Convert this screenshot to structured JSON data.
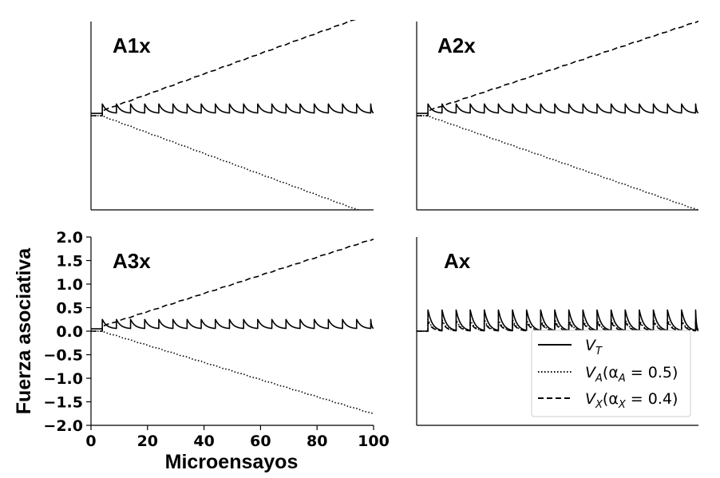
{
  "chart_data": {
    "type": "line",
    "xlabel": "Microensayos",
    "ylabel": "Fuerza asociativa",
    "xlim": [
      0,
      100
    ],
    "ylim": [
      -2.0,
      2.0
    ],
    "xticks": [
      "0",
      "20",
      "40",
      "60",
      "80",
      "100"
    ],
    "yticks": [
      "2.0",
      "1.5",
      "1.0",
      "0.5",
      "0.0",
      "−0.5",
      "−1.0",
      "−1.5",
      "−2.0"
    ],
    "legend": {
      "placement": "lower-right of panel Ax",
      "entries": [
        {
          "series": "VT",
          "main": "V",
          "sub": "T",
          "rest": ""
        },
        {
          "series": "VA",
          "main": "V",
          "sub": "A",
          "rest": "(α",
          "sub2": "A",
          "rest2": " = 0.5)"
        },
        {
          "series": "VX",
          "main": "V",
          "sub": "X",
          "rest": "(α",
          "sub2": "X",
          "rest2": " = 0.4)"
        }
      ]
    },
    "panels": [
      {
        "label": "A1x",
        "series": {
          "VT": {
            "style": "solid",
            "onset": 4,
            "period": 5,
            "base": 0.05,
            "peak": 0.25
          },
          "VA": {
            "style": "dotted",
            "onset": 4,
            "start": 0.0,
            "end": -2.05,
            "end_x": 97
          },
          "VX": {
            "style": "dashed",
            "onset": 4,
            "start": 0.1,
            "end": 2.05,
            "end_x": 94
          }
        }
      },
      {
        "label": "A2x",
        "series": {
          "VT": {
            "style": "solid",
            "onset": 4,
            "period": 5,
            "base": 0.05,
            "peak": 0.25
          },
          "VA": {
            "style": "dotted",
            "onset": 4,
            "start": 0.0,
            "end": -2.0,
            "end_x": 100
          },
          "VX": {
            "style": "dashed",
            "onset": 4,
            "start": 0.1,
            "end": 2.0,
            "end_x": 100
          }
        }
      },
      {
        "label": "A3x",
        "series": {
          "VT": {
            "style": "solid",
            "onset": 4,
            "period": 5,
            "base": 0.05,
            "peak": 0.25
          },
          "VA": {
            "style": "dotted",
            "onset": 4,
            "start": 0.0,
            "end": -1.75,
            "end_x": 100
          },
          "VX": {
            "style": "dashed",
            "onset": 4,
            "start": 0.1,
            "end": 1.95,
            "end_x": 100
          }
        }
      },
      {
        "label": "Ax",
        "series": {
          "VT": {
            "style": "solid",
            "onset": 4,
            "period": 5,
            "base": 0.0,
            "peak": 0.45
          },
          "VA": {
            "style": "dotted",
            "onset": 4,
            "period": 5,
            "base": 0.0,
            "peak": 0.25
          },
          "VX": {
            "style": "dashed",
            "onset": 4,
            "period": 5,
            "base": 0.0,
            "peak": 0.2
          }
        }
      }
    ]
  }
}
